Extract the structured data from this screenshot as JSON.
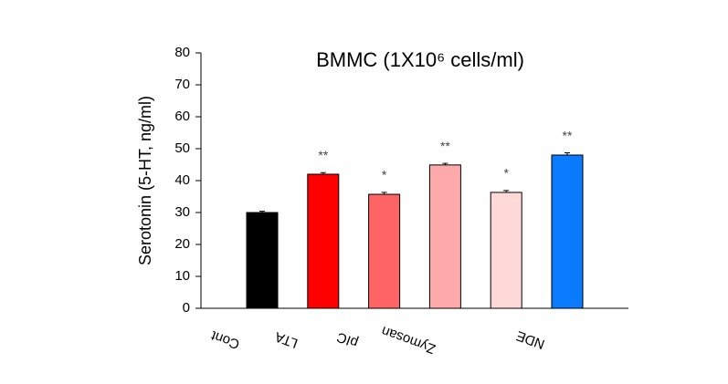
{
  "chart_data": {
    "type": "bar",
    "title": "BMMC (1X10⁶ cells/ml)",
    "y_label": "Serotonin (5-HT, ng/ml)",
    "categories": [
      "Cont",
      "LTA",
      "pIC",
      "Zymosan",
      null,
      "NDE"
    ],
    "values": [
      30,
      42,
      35.7,
      44.9,
      36.3,
      48
    ],
    "errors": [
      0.4,
      0.5,
      0.6,
      0.5,
      0.6,
      0.7
    ],
    "annotations": [
      null,
      "**",
      "*",
      "**",
      "*",
      "**"
    ],
    "colors": [
      "#000000",
      "#ff0000",
      "#ff6464",
      "#ffaaaa",
      "#ffd8d8",
      "#0a7aff"
    ],
    "ylim": [
      0,
      80
    ],
    "yticks": [
      0,
      10,
      20,
      30,
      40,
      50,
      60,
      70,
      80
    ]
  }
}
